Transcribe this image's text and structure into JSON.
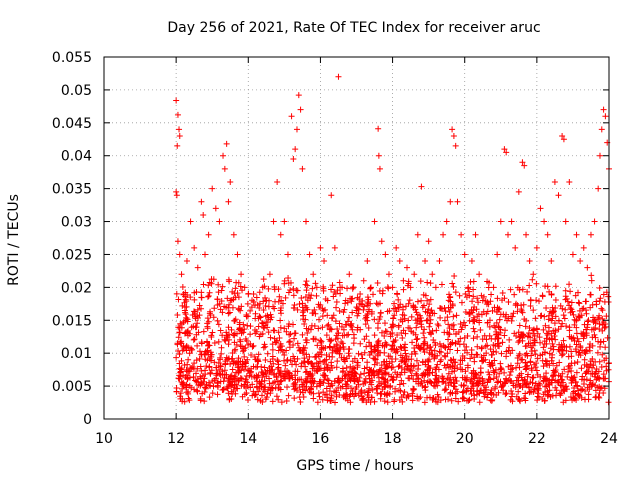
{
  "chart_data": {
    "type": "scatter",
    "title": "Day 256 of 2021, Rate Of TEC Index for receiver aruc",
    "xlabel": "GPS time / hours",
    "ylabel": "ROTI / TECUs",
    "xlim": [
      10,
      24
    ],
    "ylim": [
      0,
      0.055
    ],
    "xticks": [
      "10",
      "12",
      "14",
      "16",
      "18",
      "20",
      "22",
      "24"
    ],
    "yticks": [
      "0",
      "0.005",
      "0.01",
      "0.015",
      "0.02",
      "0.025",
      "0.03",
      "0.035",
      "0.04",
      "0.045",
      "0.05",
      "0.055"
    ],
    "grid": true,
    "marker": "plus",
    "series": [
      {
        "color": "#ff0000",
        "points": [
          [
            12.0,
            0.0484
          ],
          [
            12.05,
            0.0462
          ],
          [
            12.08,
            0.044
          ],
          [
            12.1,
            0.043
          ],
          [
            12.03,
            0.0415
          ],
          [
            12.0,
            0.0345
          ],
          [
            12.02,
            0.034
          ],
          [
            12.05,
            0.027
          ],
          [
            12.1,
            0.025
          ],
          [
            12.15,
            0.022
          ],
          [
            12.2,
            0.019
          ],
          [
            12.25,
            0.017
          ],
          [
            12.3,
            0.024
          ],
          [
            12.4,
            0.03
          ],
          [
            12.5,
            0.026
          ],
          [
            12.6,
            0.023
          ],
          [
            12.7,
            0.033
          ],
          [
            12.75,
            0.031
          ],
          [
            12.8,
            0.025
          ],
          [
            12.9,
            0.028
          ],
          [
            13.0,
            0.035
          ],
          [
            13.1,
            0.032
          ],
          [
            13.2,
            0.03
          ],
          [
            13.3,
            0.04
          ],
          [
            13.35,
            0.038
          ],
          [
            13.4,
            0.0418
          ],
          [
            13.45,
            0.033
          ],
          [
            13.5,
            0.036
          ],
          [
            13.6,
            0.028
          ],
          [
            13.7,
            0.025
          ],
          [
            13.8,
            0.022
          ],
          [
            13.9,
            0.02
          ],
          [
            14.0,
            0.019
          ],
          [
            14.1,
            0.017
          ],
          [
            14.2,
            0.016
          ],
          [
            14.4,
            0.02
          ],
          [
            14.5,
            0.018
          ],
          [
            14.6,
            0.022
          ],
          [
            14.7,
            0.03
          ],
          [
            14.8,
            0.036
          ],
          [
            14.9,
            0.028
          ],
          [
            15.0,
            0.03
          ],
          [
            15.1,
            0.025
          ],
          [
            15.2,
            0.046
          ],
          [
            15.25,
            0.0395
          ],
          [
            15.3,
            0.041
          ],
          [
            15.35,
            0.044
          ],
          [
            15.4,
            0.0492
          ],
          [
            15.45,
            0.047
          ],
          [
            15.5,
            0.038
          ],
          [
            15.6,
            0.03
          ],
          [
            15.7,
            0.025
          ],
          [
            15.8,
            0.022
          ],
          [
            15.9,
            0.02
          ],
          [
            16.0,
            0.026
          ],
          [
            16.1,
            0.024
          ],
          [
            16.2,
            0.018
          ],
          [
            16.3,
            0.034
          ],
          [
            16.4,
            0.026
          ],
          [
            16.5,
            0.052
          ],
          [
            16.6,
            0.02
          ],
          [
            16.7,
            0.018
          ],
          [
            16.8,
            0.022
          ],
          [
            16.9,
            0.02
          ],
          [
            17.0,
            0.017
          ],
          [
            17.1,
            0.019
          ],
          [
            17.2,
            0.021
          ],
          [
            17.3,
            0.024
          ],
          [
            17.4,
            0.02
          ],
          [
            17.5,
            0.03
          ],
          [
            17.6,
            0.0441
          ],
          [
            17.62,
            0.04
          ],
          [
            17.65,
            0.038
          ],
          [
            17.7,
            0.027
          ],
          [
            17.8,
            0.025
          ],
          [
            17.9,
            0.022
          ],
          [
            18.0,
            0.02
          ],
          [
            18.1,
            0.026
          ],
          [
            18.2,
            0.024
          ],
          [
            18.3,
            0.021
          ],
          [
            18.4,
            0.023
          ],
          [
            18.5,
            0.02
          ],
          [
            18.6,
            0.022
          ],
          [
            18.7,
            0.028
          ],
          [
            18.8,
            0.0353
          ],
          [
            18.9,
            0.024
          ],
          [
            19.0,
            0.027
          ],
          [
            19.1,
            0.022
          ],
          [
            19.2,
            0.02
          ],
          [
            19.3,
            0.024
          ],
          [
            19.4,
            0.028
          ],
          [
            19.5,
            0.03
          ],
          [
            19.6,
            0.033
          ],
          [
            19.65,
            0.044
          ],
          [
            19.7,
            0.043
          ],
          [
            19.75,
            0.0415
          ],
          [
            19.8,
            0.033
          ],
          [
            19.9,
            0.028
          ],
          [
            20.0,
            0.025
          ],
          [
            20.1,
            0.02
          ],
          [
            20.2,
            0.024
          ],
          [
            20.3,
            0.028
          ],
          [
            20.4,
            0.022
          ],
          [
            20.5,
            0.018
          ],
          [
            20.6,
            0.016
          ],
          [
            20.7,
            0.015
          ],
          [
            20.8,
            0.02
          ],
          [
            20.9,
            0.025
          ],
          [
            21.0,
            0.03
          ],
          [
            21.1,
            0.041
          ],
          [
            21.15,
            0.0405
          ],
          [
            21.2,
            0.028
          ],
          [
            21.3,
            0.03
          ],
          [
            21.4,
            0.026
          ],
          [
            21.5,
            0.0345
          ],
          [
            21.6,
            0.039
          ],
          [
            21.65,
            0.0385
          ],
          [
            21.7,
            0.028
          ],
          [
            21.8,
            0.024
          ],
          [
            21.9,
            0.022
          ],
          [
            22.0,
            0.026
          ],
          [
            22.1,
            0.032
          ],
          [
            22.2,
            0.03
          ],
          [
            22.3,
            0.028
          ],
          [
            22.4,
            0.024
          ],
          [
            22.5,
            0.036
          ],
          [
            22.6,
            0.034
          ],
          [
            22.7,
            0.043
          ],
          [
            22.75,
            0.0425
          ],
          [
            22.8,
            0.03
          ],
          [
            22.9,
            0.036
          ],
          [
            23.0,
            0.025
          ],
          [
            23.1,
            0.028
          ],
          [
            23.2,
            0.024
          ],
          [
            23.3,
            0.026
          ],
          [
            23.4,
            0.023
          ],
          [
            23.5,
            0.028
          ],
          [
            23.6,
            0.03
          ],
          [
            23.7,
            0.035
          ],
          [
            23.75,
            0.04
          ],
          [
            23.8,
            0.044
          ],
          [
            23.85,
            0.047
          ],
          [
            23.9,
            0.046
          ],
          [
            23.95,
            0.042
          ],
          [
            24.0,
            0.038
          ]
        ]
      }
    ]
  }
}
